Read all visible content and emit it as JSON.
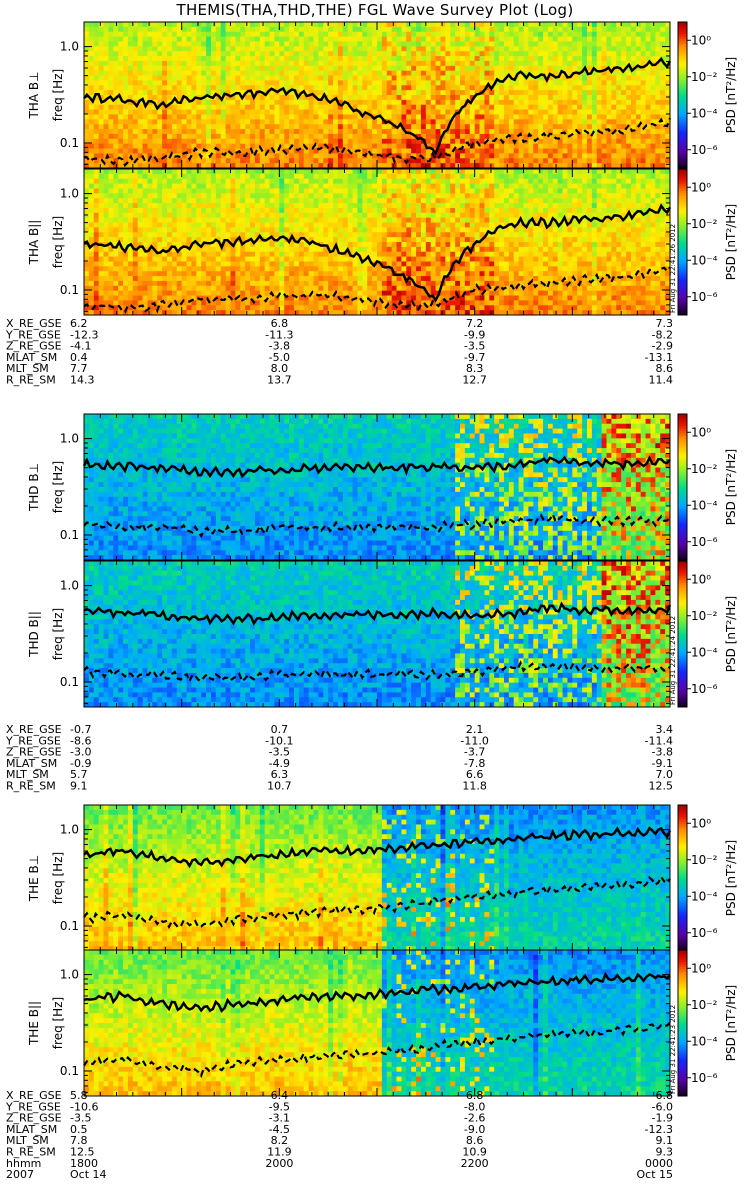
{
  "title": "THEMIS(THA,THD,THE) FGL Wave Survey Plot (Log)",
  "colorbar": {
    "label": "PSD [nT²/Hz]",
    "tick_labels": [
      "10⁰",
      "10⁻²",
      "10⁻⁴",
      "10⁻⁶"
    ],
    "stamps": [
      "Fri Aug 31 22:41:26 2012",
      "Fri Aug 31 22:41:24 2012",
      "Fri Aug 31 22:41:23 2012"
    ]
  },
  "freq_tick_labels": [
    "1.0",
    "0.1"
  ],
  "panels": [
    {
      "probe": "THA",
      "component": "B⊥",
      "ylabel": "freq [Hz]",
      "name": "THA B⊥"
    },
    {
      "probe": "THA",
      "component": "B||",
      "ylabel": "freq [Hz]",
      "name": "THA B||"
    },
    {
      "probe": "THD",
      "component": "B⊥",
      "ylabel": "freq [Hz]",
      "name": "THD B⊥"
    },
    {
      "probe": "THD",
      "component": "B||",
      "ylabel": "freq [Hz]",
      "name": "THD B||"
    },
    {
      "probe": "THE",
      "component": "B⊥",
      "ylabel": "freq [Hz]",
      "name": "THE B⊥"
    },
    {
      "probe": "THE",
      "component": "B||",
      "ylabel": "freq [Hz]",
      "name": "THE B||"
    }
  ],
  "ephemeris": [
    {
      "probe": "THA",
      "rows": [
        {
          "label": "X_RE_GSE",
          "values": [
            "6.2",
            "6.8",
            "7.2",
            "7.3"
          ]
        },
        {
          "label": "Y_RE_GSE",
          "values": [
            "-12.3",
            "-11.3",
            "-9.9",
            "-8.2"
          ]
        },
        {
          "label": "Z_RE_GSE",
          "values": [
            "-4.1",
            "-3.8",
            "-3.5",
            "-2.9"
          ]
        },
        {
          "label": "MLAT_SM",
          "values": [
            "0.4",
            "-5.0",
            "-9.7",
            "-13.1"
          ]
        },
        {
          "label": "MLT_SM",
          "values": [
            "7.7",
            "8.0",
            "8.3",
            "8.6"
          ]
        },
        {
          "label": "R_RE_SM",
          "values": [
            "14.3",
            "13.7",
            "12.7",
            "11.4"
          ]
        }
      ]
    },
    {
      "probe": "THD",
      "rows": [
        {
          "label": "X_RE_GSE",
          "values": [
            "-0.7",
            "0.7",
            "2.1",
            "3.4"
          ]
        },
        {
          "label": "Y_RE_GSE",
          "values": [
            "-8.6",
            "-10.1",
            "-11.0",
            "-11.4"
          ]
        },
        {
          "label": "Z_RE_GSE",
          "values": [
            "-3.0",
            "-3.5",
            "-3.7",
            "-3.8"
          ]
        },
        {
          "label": "MLAT_SM",
          "values": [
            "-0.9",
            "-4.9",
            "-7.8",
            "-9.1"
          ]
        },
        {
          "label": "MLT_SM",
          "values": [
            "5.7",
            "6.3",
            "6.6",
            "7.0"
          ]
        },
        {
          "label": "R_RE_SM",
          "values": [
            "9.1",
            "10.7",
            "11.8",
            "12.5"
          ]
        }
      ]
    },
    {
      "probe": "THE",
      "rows": [
        {
          "label": "X_RE_GSE",
          "values": [
            "5.8",
            "6.4",
            "6.8",
            "6.8"
          ]
        },
        {
          "label": "Y_RE_GSE",
          "values": [
            "-10.6",
            "-9.5",
            "-8.0",
            "-6.0"
          ]
        },
        {
          "label": "Z_RE_GSE",
          "values": [
            "-3.5",
            "-3.1",
            "-2.6",
            "-1.9"
          ]
        },
        {
          "label": "MLAT_SM",
          "values": [
            "0.5",
            "-4.5",
            "-9.0",
            "-12.3"
          ]
        },
        {
          "label": "MLT_SM",
          "values": [
            "7.8",
            "8.2",
            "8.6",
            "9.1"
          ]
        },
        {
          "label": "R_RE_SM",
          "values": [
            "12.5",
            "11.9",
            "10.9",
            "9.3"
          ]
        },
        {
          "label": "hhmm",
          "values": [
            "1800",
            "2000",
            "2200",
            "0000"
          ]
        },
        {
          "label": "2007",
          "values": [
            "Oct 14",
            "",
            "",
            "Oct 15"
          ]
        }
      ]
    }
  ],
  "chart_data": {
    "type": "heatmap",
    "title": "THEMIS(THA,THD,THE) FGL Wave Survey Plot (Log)",
    "x_time_ticks": [
      "1800",
      "2000",
      "2200",
      "0000"
    ],
    "x_dates": {
      "start": "2007 Oct 14",
      "end": "Oct 15"
    },
    "y_axis": {
      "label": "freq [Hz]",
      "scale": "log",
      "range_hz": [
        0.055,
        1.8
      ],
      "ticks": [
        0.1,
        1.0
      ]
    },
    "color_scale": {
      "label": "PSD [nT²/Hz]",
      "scale": "log",
      "range": [
        1e-07,
        10
      ],
      "ticks": [
        1e-06,
        0.0001,
        0.01,
        1
      ],
      "colormap": "rainbow"
    },
    "series": [
      {
        "panel": "THA B⊥",
        "overall_log_psd": -1.0,
        "solid_fce_line": [
          0.3,
          0.28,
          0.25,
          0.3,
          0.32,
          0.35,
          0.3,
          0.22,
          0.15,
          0.08,
          0.3,
          0.5,
          0.5,
          0.55,
          0.6,
          0.7
        ],
        "dashed_line": [
          0.07,
          0.065,
          0.07,
          0.08,
          0.08,
          0.085,
          0.09,
          0.08,
          0.07,
          0.07,
          0.1,
          0.11,
          0.12,
          0.13,
          0.14,
          0.17
        ]
      },
      {
        "panel": "THA B||",
        "overall_log_psd": -1.0,
        "solid_fce_line": [
          0.3,
          0.28,
          0.25,
          0.3,
          0.32,
          0.35,
          0.3,
          0.22,
          0.15,
          0.08,
          0.3,
          0.5,
          0.5,
          0.55,
          0.6,
          0.7
        ],
        "dashed_line": [
          0.07,
          0.065,
          0.07,
          0.08,
          0.08,
          0.085,
          0.09,
          0.08,
          0.07,
          0.07,
          0.1,
          0.11,
          0.12,
          0.13,
          0.14,
          0.17
        ]
      },
      {
        "panel": "THD B⊥",
        "overall_log_psd": -3.5,
        "solid_fce_line": [
          0.55,
          0.52,
          0.5,
          0.45,
          0.45,
          0.47,
          0.5,
          0.5,
          0.5,
          0.52,
          0.5,
          0.52,
          0.6,
          0.55,
          0.55,
          0.58
        ],
        "dashed_line": [
          0.13,
          0.12,
          0.12,
          0.11,
          0.11,
          0.12,
          0.12,
          0.12,
          0.12,
          0.12,
          0.13,
          0.14,
          0.15,
          0.14,
          0.14,
          0.14
        ]
      },
      {
        "panel": "THD B||",
        "overall_log_psd": -3.5,
        "solid_fce_line": [
          0.55,
          0.52,
          0.5,
          0.45,
          0.45,
          0.47,
          0.5,
          0.5,
          0.5,
          0.52,
          0.5,
          0.52,
          0.6,
          0.55,
          0.55,
          0.58
        ],
        "dashed_line": [
          0.13,
          0.12,
          0.12,
          0.11,
          0.11,
          0.12,
          0.12,
          0.12,
          0.12,
          0.12,
          0.13,
          0.14,
          0.15,
          0.14,
          0.14,
          0.14
        ]
      },
      {
        "panel": "THE B⊥",
        "overall_log_psd": -1.5,
        "solid_fce_line": [
          0.55,
          0.6,
          0.5,
          0.45,
          0.5,
          0.55,
          0.6,
          0.6,
          0.65,
          0.7,
          0.75,
          0.8,
          0.85,
          0.9,
          0.92,
          0.95
        ],
        "dashed_line": [
          0.12,
          0.13,
          0.11,
          0.1,
          0.12,
          0.13,
          0.14,
          0.15,
          0.16,
          0.18,
          0.2,
          0.22,
          0.24,
          0.25,
          0.27,
          0.3
        ]
      },
      {
        "panel": "THE B||",
        "overall_log_psd": -1.5,
        "solid_fce_line": [
          0.55,
          0.6,
          0.5,
          0.45,
          0.5,
          0.55,
          0.6,
          0.6,
          0.65,
          0.7,
          0.75,
          0.8,
          0.85,
          0.9,
          0.92,
          0.95
        ],
        "dashed_line": [
          0.12,
          0.13,
          0.11,
          0.1,
          0.12,
          0.13,
          0.14,
          0.15,
          0.16,
          0.18,
          0.2,
          0.22,
          0.24,
          0.25,
          0.27,
          0.3
        ]
      }
    ]
  }
}
